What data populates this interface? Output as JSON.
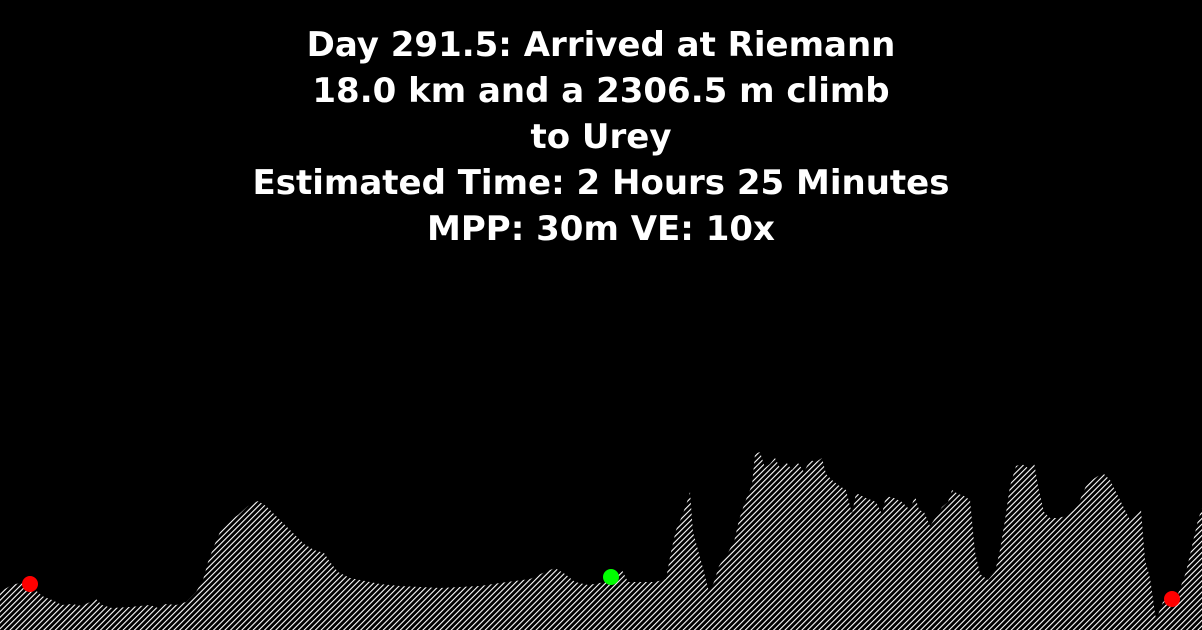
{
  "title": {
    "line1": "Day 291.5: Arrived at Riemann",
    "line2": "18.0 km and a 2306.5 m climb",
    "line3": "to Urey",
    "line4": "Estimated Time: 2 Hours 25 Minutes",
    "line5": "MPP: 30m VE: 10x"
  },
  "colors": {
    "background": "#000000",
    "text": "#ffffff",
    "terrain_hatch": "#ffffff",
    "marker_endpoint": "#ff0000",
    "marker_current": "#00ff00"
  },
  "markers": [
    {
      "name": "start-marker",
      "color": "marker_endpoint"
    },
    {
      "name": "current-position-marker",
      "color": "marker_current"
    },
    {
      "name": "end-marker",
      "color": "marker_endpoint"
    }
  ]
}
